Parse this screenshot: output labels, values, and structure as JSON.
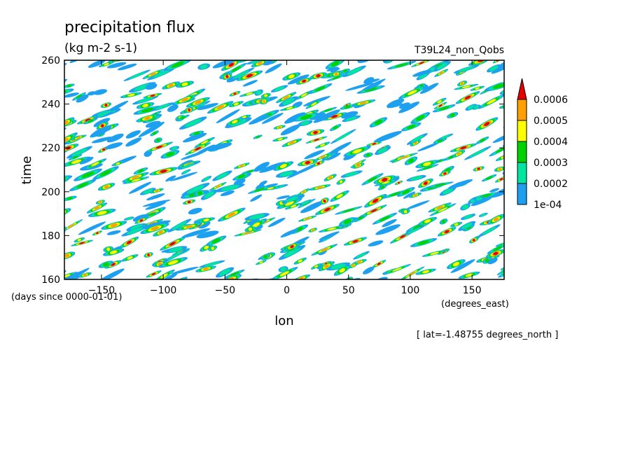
{
  "chart_data": {
    "type": "heatmap",
    "title": "precipitation flux",
    "units": "(kg m-2 s-1)",
    "run_label": "T39L24_non_Qobs",
    "xlabel": "lon",
    "x_units": "(degrees_east)",
    "ylabel": "time",
    "y_units": "(days since 0000-01-01)",
    "footnote": "[ lat=-1.48755 degrees_north ]",
    "xlim": [
      -180,
      176
    ],
    "ylim": [
      160,
      260
    ],
    "x_ticks": [
      -150,
      -100,
      -50,
      0,
      50,
      100,
      150
    ],
    "y_ticks": [
      160,
      180,
      200,
      220,
      240,
      260
    ],
    "grid": false,
    "legend": {
      "placement": "right",
      "levels": [
        "1e-04",
        "0.0002",
        "0.0003",
        "0.0004",
        "0.0005",
        "0.0006"
      ],
      "colors": [
        "#1ea0f0",
        "#00e6a0",
        "#00d200",
        "#ffff00",
        "#ffa000",
        "#e60000"
      ]
    }
  }
}
